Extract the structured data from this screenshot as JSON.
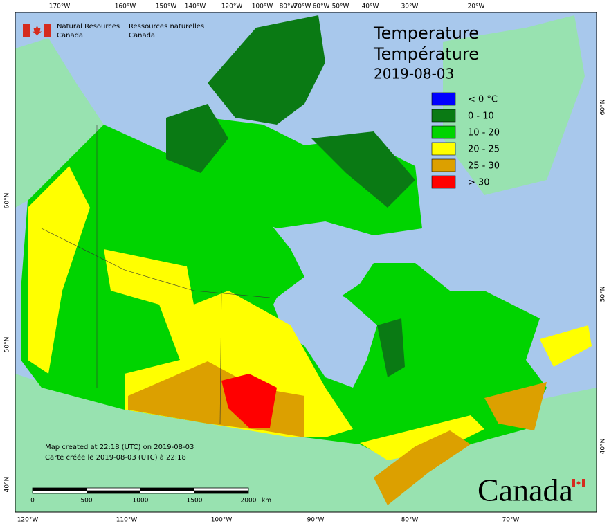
{
  "agency": {
    "en_line1": "Natural Resources",
    "en_line2": "Canada",
    "fr_line1": "Ressources naturelles",
    "fr_line2": "Canada"
  },
  "title": {
    "en": "Temperature",
    "fr": "Température",
    "date": "2019-08-03"
  },
  "legend": [
    {
      "label": "< 0 °C",
      "color": "#0000ff"
    },
    {
      "label": "0 - 10",
      "color": "#0a7a14"
    },
    {
      "label": "10 - 20",
      "color": "#00d400"
    },
    {
      "label": "20 - 25",
      "color": "#ffff00"
    },
    {
      "label": "25 - 30",
      "color": "#dca000"
    },
    {
      "label": "> 30",
      "color": "#ff0000"
    }
  ],
  "credits": {
    "en": "Map created at 22:18 (UTC) on 2019-08-03",
    "fr": "Carte créée le 2019-08-03 (UTC) à 22:18"
  },
  "scale_bar": {
    "ticks": [
      0,
      500,
      1000,
      1500,
      2000
    ],
    "unit": "km"
  },
  "graticule": {
    "top": [
      "170°W",
      "160°W",
      "150°W",
      "140°W",
      "120°W",
      "100°W",
      "80°W",
      "70°W",
      "60°W",
      "50°W",
      "40°W",
      "30°W",
      "20°W"
    ],
    "bottom": [
      "120°W",
      "110°W",
      "100°W",
      "90°W",
      "80°W",
      "70°W"
    ],
    "left": [
      "60°N",
      "50°N",
      "40°N"
    ],
    "right": [
      "60°N",
      "50°N",
      "40°N"
    ]
  },
  "wordmark": "Canada"
}
